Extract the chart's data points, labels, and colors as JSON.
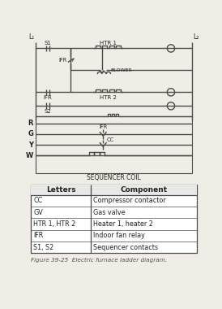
{
  "title": "Figure 39-25  Electric furnace ladder diagram.",
  "sequencer_label": "SEQUENCER COIL",
  "table_headers": [
    "Letters",
    "Component"
  ],
  "table_rows": [
    [
      "CC",
      "Compressor contactor"
    ],
    [
      "GV",
      "Gas valve"
    ],
    [
      "HTR 1, HTR 2",
      "Heater 1, heater 2"
    ],
    [
      "IFR",
      "Indoor fan relay"
    ],
    [
      "S1, S2",
      "Sequencer contacts"
    ]
  ],
  "bg_color": "#f0ede6",
  "line_color": "#4a4a4a",
  "text_color": "#222222"
}
